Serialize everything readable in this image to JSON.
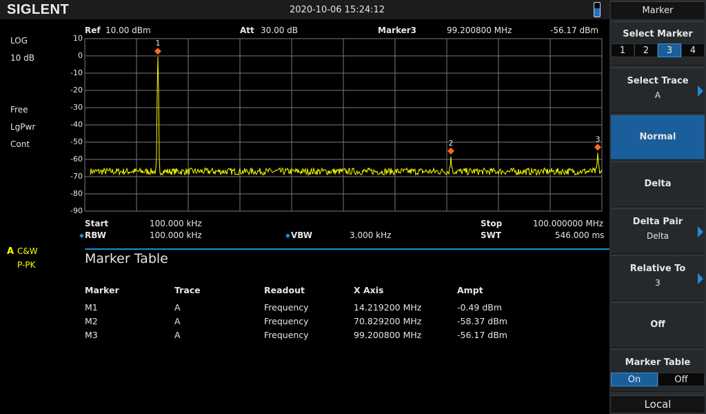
{
  "header": {
    "brand": "SIGLENT",
    "datetime": "2020-10-06   15:24:12"
  },
  "left_status": {
    "scale_type": "LOG",
    "scale_div": "10 dB",
    "trig": "Free",
    "detector_mode": "LgPwr",
    "sweep": "Cont",
    "trace_label": "A",
    "trace_mode": "C&W",
    "trace_detector": "P-PK"
  },
  "plot_header": {
    "ref_label": "Ref",
    "ref_value": "10.00 dBm",
    "att_label": "Att",
    "att_value": "30.00 dB",
    "marker_label": "Marker3",
    "marker_freq": "99.200800 MHz",
    "marker_ampl": "-56.17 dBm"
  },
  "y_ticks": [
    "10",
    "0",
    "-10",
    "-20",
    "-30",
    "-40",
    "-50",
    "-60",
    "-70",
    "-80",
    "-90"
  ],
  "footer": {
    "start_label": "Start",
    "start_value": "100.000 kHz",
    "rbw_label": "RBW",
    "rbw_value": "100.000 kHz",
    "vbw_label": "VBW",
    "vbw_value": "3.000 kHz",
    "stop_label": "Stop",
    "stop_value": "100.000000 MHz",
    "swt_label": "SWT",
    "swt_value": "546.000 ms"
  },
  "colors": {
    "trace": "#ffff00",
    "marker": "#ff6a1a",
    "accent": "#1a5f9c",
    "grid": "#7a7a7a"
  },
  "spectrum": {
    "start_mhz": 0.1,
    "stop_mhz": 100,
    "ref_dbm": 10,
    "bottom_dbm": -90,
    "noise_floor_dbm": -67,
    "markers": [
      {
        "id": "1",
        "freq_mhz": 14.2192,
        "ampl_dbm": -0.49
      },
      {
        "id": "2",
        "freq_mhz": 70.8292,
        "ampl_dbm": -58.37
      },
      {
        "id": "3",
        "freq_mhz": 99.2008,
        "ampl_dbm": -56.17
      }
    ]
  },
  "marker_table": {
    "title": "Marker Table",
    "headers": [
      "Marker",
      "Trace",
      "Readout",
      "X Axis",
      "Ampt"
    ],
    "rows": [
      [
        "M1",
        "A",
        "Frequency",
        "14.219200 MHz",
        "-0.49 dBm"
      ],
      [
        "M2",
        "A",
        "Frequency",
        "70.829200 MHz",
        "-58.37 dBm"
      ],
      [
        "M3",
        "A",
        "Frequency",
        "99.200800 MHz",
        "-56.17 dBm"
      ]
    ]
  },
  "panel": {
    "title": "Marker",
    "select_marker": "Select Marker",
    "marker_options": [
      "1",
      "2",
      "3",
      "4"
    ],
    "selected_marker": "3",
    "select_trace": "Select Trace",
    "select_trace_value": "A",
    "normal": "Normal",
    "delta": "Delta",
    "delta_pair": "Delta Pair",
    "delta_pair_value": "Delta",
    "relative_to": "Relative To",
    "relative_to_value": "3",
    "off": "Off",
    "marker_table": "Marker Table",
    "mt_on": "On",
    "mt_off": "Off",
    "mt_selected": "On",
    "local": "Local"
  }
}
